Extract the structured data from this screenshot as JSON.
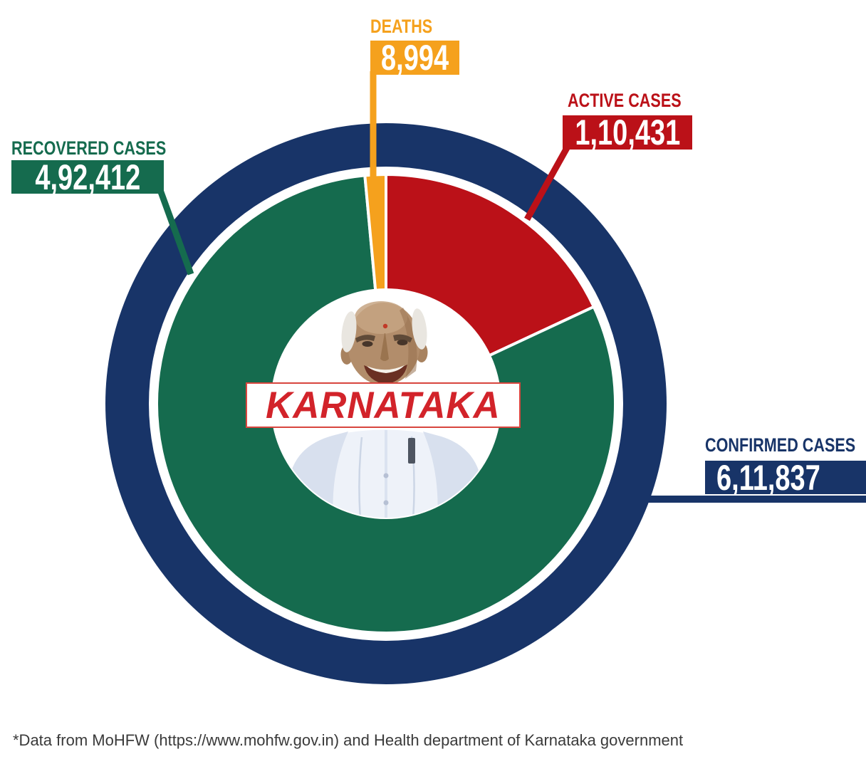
{
  "banner": {
    "text": "KARNATAKA",
    "text_color": "#d2232a",
    "bg_color": "#ffffff"
  },
  "callouts": {
    "deaths": {
      "title": "DEATHS",
      "value": "8,994",
      "color": "#f5a11d"
    },
    "active": {
      "title": "ACTIVE CASES",
      "value": "1,10,431",
      "color": "#bb1118"
    },
    "recovered": {
      "title": "RECOVERED CASES",
      "value": "4,92,412",
      "color": "#156b4e"
    },
    "confirmed": {
      "title": "CONFIRMED CASES",
      "value": "6,11,837",
      "color": "#183468"
    }
  },
  "chart_data": {
    "type": "pie",
    "donut": true,
    "center_label": "KARNATAKA",
    "start_angle_deg": 0,
    "direction": "clockwise",
    "segments": [
      {
        "key": "active",
        "label": "Active cases",
        "value": 110431,
        "display": "1,10,431",
        "color": "#bb1118"
      },
      {
        "key": "recovered",
        "label": "Recovered cases",
        "value": 492412,
        "display": "4,92,412",
        "color": "#156b4e"
      },
      {
        "key": "deaths",
        "label": "Deaths",
        "value": 8994,
        "display": "8,994",
        "color": "#f5a11d"
      }
    ],
    "outer_ring": {
      "key": "confirmed",
      "label": "Confirmed cases",
      "value": 611837,
      "display": "6,11,837",
      "color": "#183468"
    },
    "legend_position": "callouts"
  },
  "footer": {
    "source_note": "*Data from MoHFW (https://www.mohfw.gov.in) and Health department of Karnataka government"
  }
}
